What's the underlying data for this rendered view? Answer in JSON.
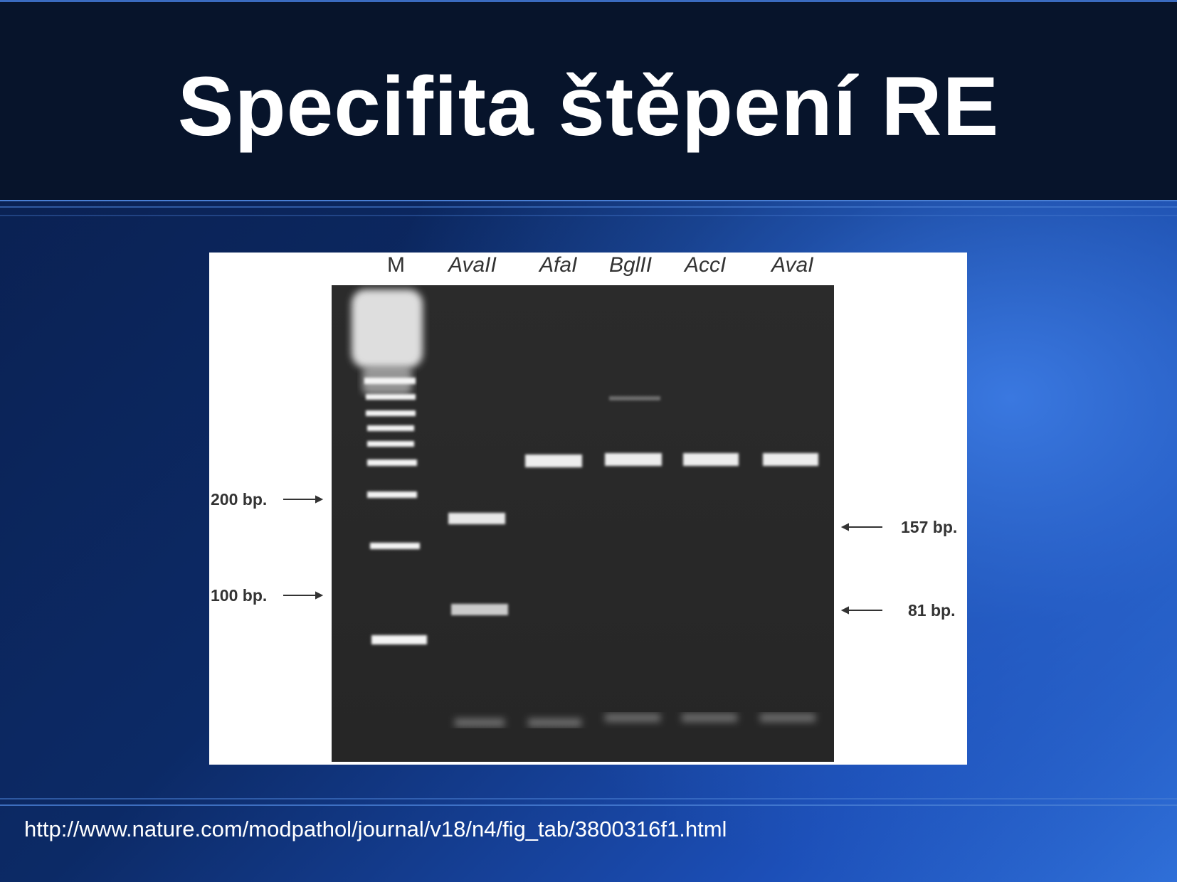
{
  "slide": {
    "title": "Specifita štěpení RE",
    "source_url": "http://www.nature.com/modpathol/journal/v18/n4/fig_tab/3800316f1.html"
  },
  "figure": {
    "lanes": [
      "M",
      "AvaII",
      "AfaI",
      "BglII",
      "AccI",
      "AvaI"
    ],
    "left_markers": [
      "200 bp.",
      "100 bp."
    ],
    "right_markers": [
      "157 bp.",
      "81 bp."
    ]
  },
  "colors": {
    "title_bar": "#07142b",
    "accent_line": "#4a7fd4",
    "gel": "#2a2a2a",
    "band": "#f2f2f2"
  }
}
